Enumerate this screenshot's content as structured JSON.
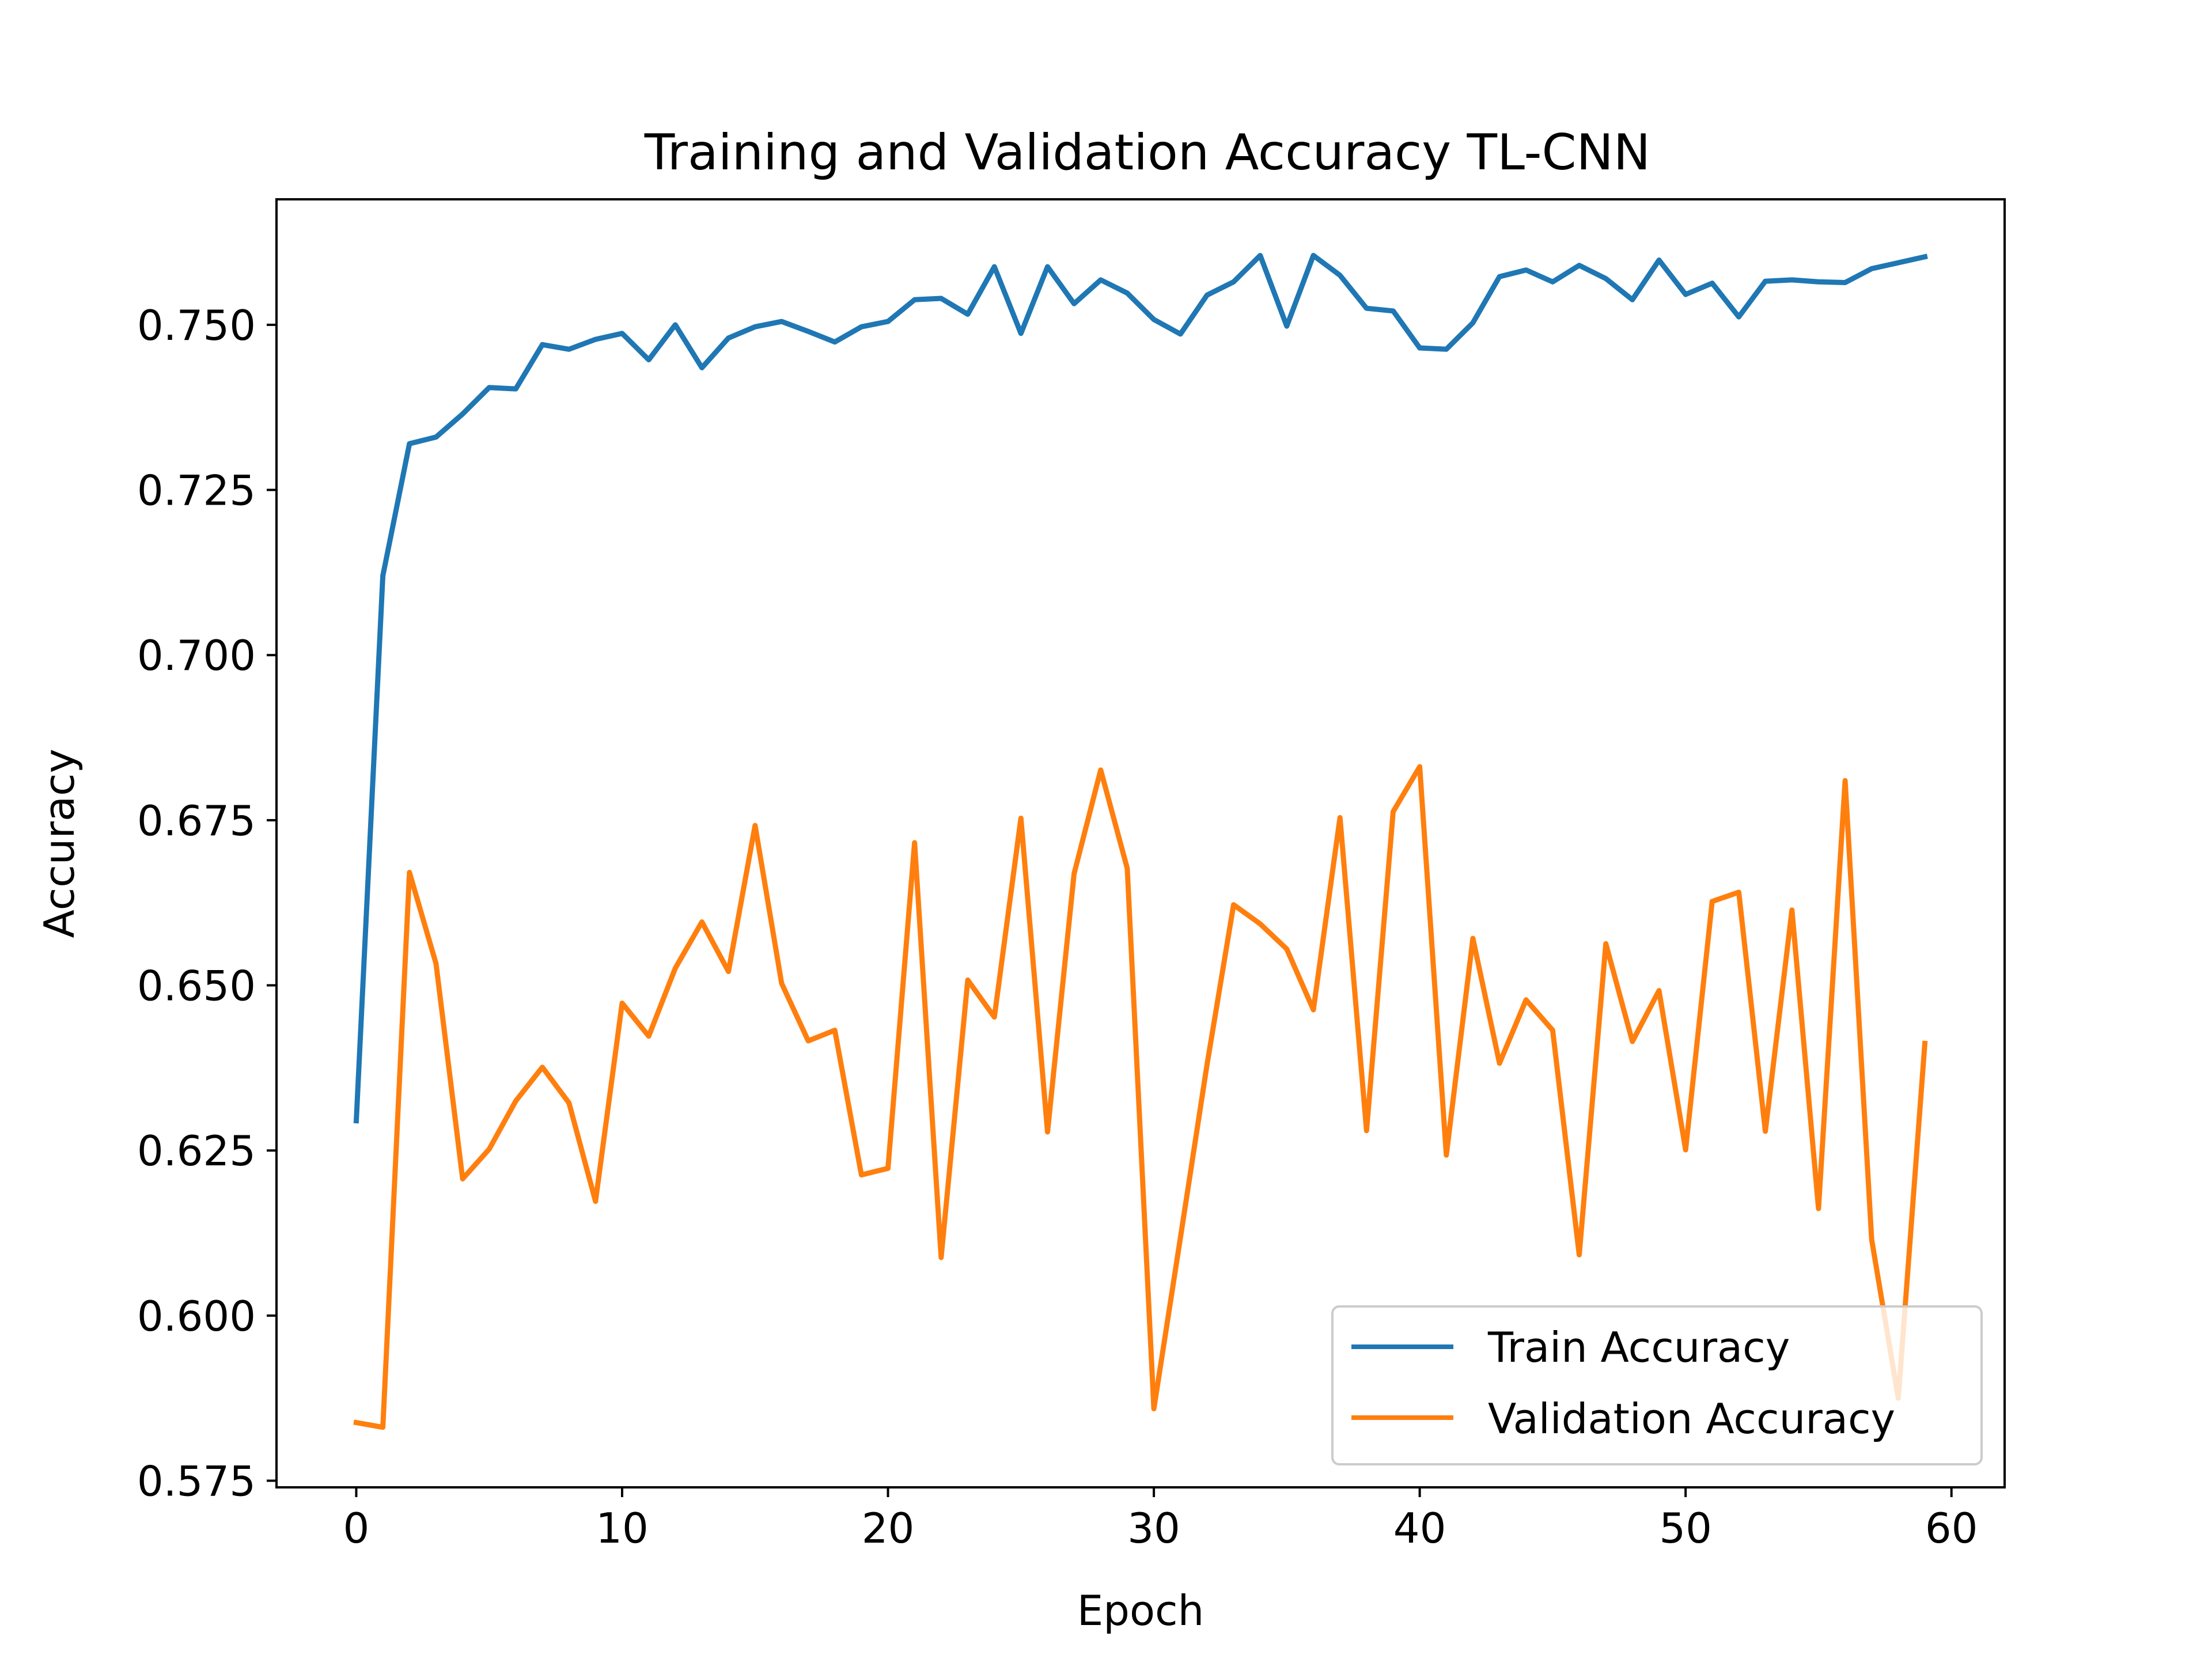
{
  "chart_data": {
    "type": "line",
    "title": "Training and Validation Accuracy TL-CNN",
    "xlabel": "Epoch",
    "ylabel": "Accuracy",
    "xlim": [
      -3,
      62
    ],
    "ylim": [
      0.574,
      0.769
    ],
    "xticks": [
      0,
      10,
      20,
      30,
      40,
      50,
      60
    ],
    "xtick_labels": [
      "0",
      "10",
      "20",
      "30",
      "40",
      "50",
      "60"
    ],
    "yticks": [
      0.575,
      0.6,
      0.625,
      0.65,
      0.675,
      0.7,
      0.725,
      0.75
    ],
    "ytick_labels": [
      "0.575",
      "0.600",
      "0.625",
      "0.650",
      "0.675",
      "0.700",
      "0.725",
      "0.750"
    ],
    "grid": false,
    "legend_position": "lower-right",
    "x": [
      0,
      1,
      2,
      3,
      4,
      5,
      6,
      7,
      8,
      9,
      10,
      11,
      12,
      13,
      14,
      15,
      16,
      17,
      18,
      19,
      20,
      21,
      22,
      23,
      24,
      25,
      26,
      27,
      28,
      29,
      30,
      31,
      32,
      33,
      34,
      35,
      36,
      37,
      38,
      39,
      40,
      41,
      42,
      43,
      44,
      45,
      46,
      47,
      48,
      49,
      50,
      51,
      52,
      53,
      54,
      55,
      56,
      57,
      58,
      59
    ],
    "series": [
      {
        "name": "Train Accuracy",
        "color": "#1f77b4",
        "values": [
          0.6295,
          0.712,
          0.732,
          0.733,
          0.7365,
          0.7405,
          0.7403,
          0.747,
          0.7463,
          0.7478,
          0.7487,
          0.7447,
          0.75,
          0.7435,
          0.748,
          0.7497,
          0.7505,
          0.749,
          0.7474,
          0.7497,
          0.7505,
          0.7538,
          0.754,
          0.7516,
          0.7588,
          0.7487,
          0.7588,
          0.7532,
          0.7568,
          0.7548,
          0.7508,
          0.7486,
          0.7545,
          0.7565,
          0.7605,
          0.7498,
          0.7605,
          0.7575,
          0.7525,
          0.7521,
          0.7465,
          0.7463,
          0.7503,
          0.7573,
          0.7583,
          0.7565,
          0.759,
          0.757,
          0.7538,
          0.7598,
          0.7546,
          0.7563,
          0.7512,
          0.7566,
          0.7568,
          0.7565,
          0.7564,
          0.7585,
          0.7594,
          0.7603
        ]
      },
      {
        "name": "Validation Accuracy",
        "color": "#ff7f0e",
        "values": [
          0.5838,
          0.5831,
          0.6671,
          0.6533,
          0.6207,
          0.6252,
          0.6325,
          0.6376,
          0.6322,
          0.6173,
          0.6473,
          0.6423,
          0.6526,
          0.6596,
          0.6521,
          0.6742,
          0.6503,
          0.6416,
          0.6432,
          0.6213,
          0.6223,
          0.6716,
          0.6088,
          0.6508,
          0.6452,
          0.6753,
          0.6278,
          0.6669,
          0.6826,
          0.6677,
          0.5859,
          0.6118,
          0.638,
          0.6622,
          0.6593,
          0.6555,
          0.6463,
          0.6754,
          0.628,
          0.6763,
          0.6831,
          0.6243,
          0.6571,
          0.6382,
          0.6478,
          0.6432,
          0.6092,
          0.6563,
          0.6415,
          0.6492,
          0.6251,
          0.6627,
          0.6641,
          0.6279,
          0.6614,
          0.6162,
          0.681,
          0.6115,
          0.5875,
          0.6412
        ]
      }
    ]
  }
}
